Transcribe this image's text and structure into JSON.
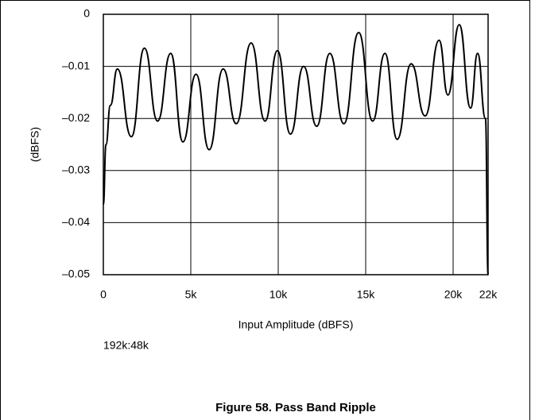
{
  "chart_data": {
    "type": "line",
    "title": "Figure 58. Pass Band Ripple",
    "xlabel": "Input Amplitude (dBFS)",
    "ylabel": "(dBFS)",
    "annotation": "192k:48k",
    "xlim": [
      0,
      22000
    ],
    "ylim": [
      -0.05,
      0
    ],
    "xticks": [
      0,
      {
        "value": 5000,
        "label": "5k"
      },
      {
        "value": 10000,
        "label": "10k"
      },
      {
        "value": 15000,
        "label": "15k"
      },
      {
        "value": 20000,
        "label": "20k"
      },
      {
        "value": 22000,
        "label": "22k"
      }
    ],
    "yticks": [
      0,
      {
        "value": -0.01,
        "label": "–0.01"
      },
      {
        "value": -0.02,
        "label": "–0.02"
      },
      {
        "value": -0.03,
        "label": "–0.03"
      },
      {
        "value": -0.04,
        "label": "–0.04"
      },
      {
        "value": -0.05,
        "label": "–0.05"
      }
    ],
    "grid": true,
    "x": [
      0,
      150,
      400,
      800,
      1600,
      2350,
      3100,
      3850,
      4550,
      5300,
      6050,
      6850,
      7600,
      8450,
      9250,
      9950,
      10700,
      11450,
      12200,
      12950,
      13750,
      14600,
      15400,
      16100,
      16800,
      17600,
      18400,
      19200,
      19700,
      20350,
      21000,
      21400,
      21850,
      22000
    ],
    "series": [
      {
        "name": "192k:48k",
        "color": "#000000",
        "values": [
          -0.0365,
          -0.025,
          -0.0175,
          -0.0105,
          -0.0235,
          -0.0065,
          -0.0205,
          -0.0075,
          -0.0245,
          -0.0115,
          -0.026,
          -0.0105,
          -0.021,
          -0.0055,
          -0.0205,
          -0.007,
          -0.023,
          -0.01,
          -0.0215,
          -0.0075,
          -0.021,
          -0.0035,
          -0.0205,
          -0.0075,
          -0.024,
          -0.0095,
          -0.0195,
          -0.005,
          -0.0155,
          -0.002,
          -0.018,
          -0.0075,
          -0.02,
          -0.05
        ]
      }
    ]
  }
}
